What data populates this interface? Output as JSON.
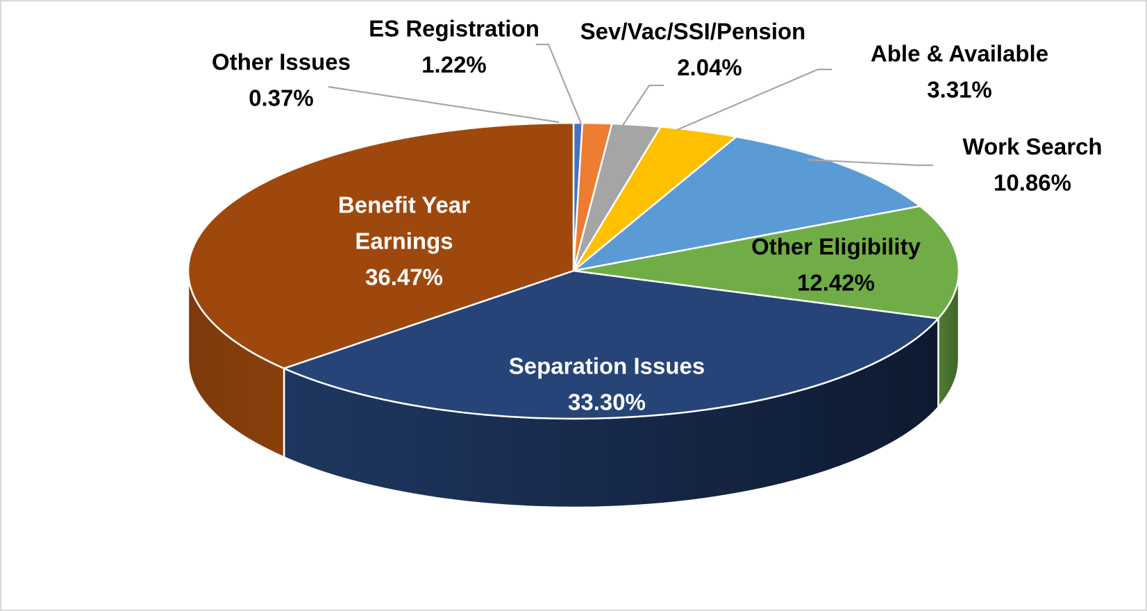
{
  "chart_data": {
    "type": "pie",
    "style": "3d",
    "title": "",
    "slices": [
      {
        "label": "Other Issues",
        "value": 0.37,
        "value_label": "0.37%",
        "color": "#4472c4"
      },
      {
        "label": "ES Registration",
        "value": 1.22,
        "value_label": "1.22%",
        "color": "#ed7d31"
      },
      {
        "label": "Sev/Vac/SSI/Pension",
        "value": 2.04,
        "value_label": "2.04%",
        "color": "#a5a5a5"
      },
      {
        "label": "Able & Available",
        "value": 3.31,
        "value_label": "3.31%",
        "color": "#ffc000"
      },
      {
        "label": "Work Search",
        "value": 10.86,
        "value_label": "10.86%",
        "color": "#5b9bd5"
      },
      {
        "label": "Other Eligibility",
        "value": 12.42,
        "value_label": "12.42%",
        "color": "#70ad47"
      },
      {
        "label": "Separation Issues",
        "value": 33.3,
        "value_label": "33.30%",
        "color": "#264478"
      },
      {
        "label": "Benefit Year Earnings",
        "value": 36.47,
        "value_label": "36.47%",
        "color": "#9e480e"
      }
    ]
  }
}
